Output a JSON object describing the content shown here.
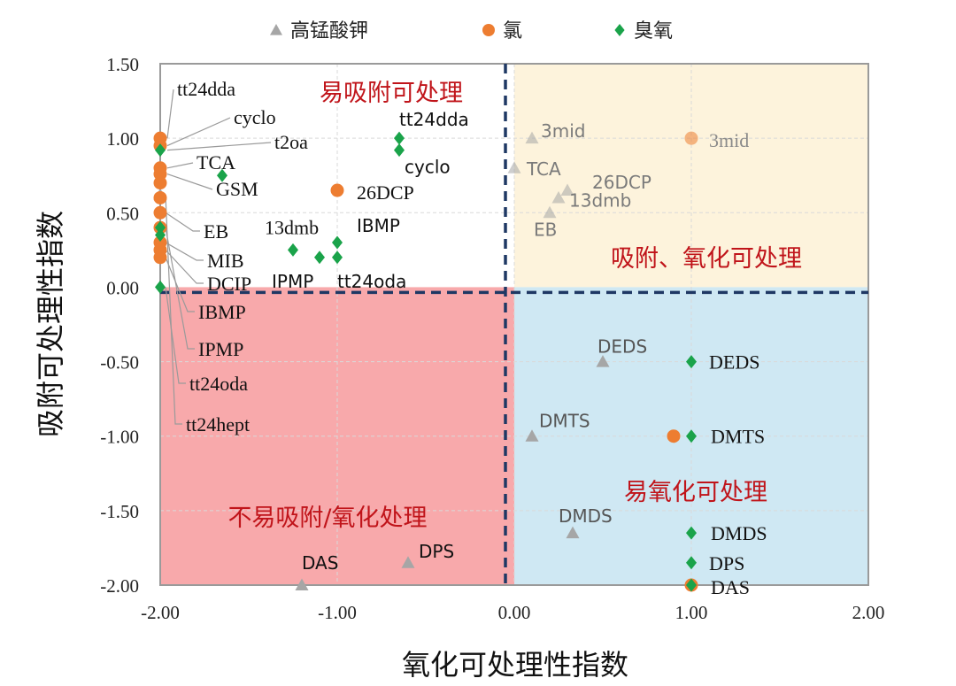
{
  "chart_data": {
    "type": "scatter",
    "title": "",
    "xlabel": "氧化可处理性指数",
    "ylabel": "吸附可处理性指数",
    "xlim": [
      -2.0,
      2.0
    ],
    "ylim": [
      -2.0,
      1.5
    ],
    "xticks": [
      "-2.00",
      "-1.00",
      "0.00",
      "1.00",
      "2.00"
    ],
    "yticks": [
      "1.50",
      "1.00",
      "0.50",
      "0.00",
      "-0.50",
      "-1.00",
      "-1.50",
      "-2.00"
    ],
    "legend_position": "top",
    "legend": [
      {
        "name": "高锰酸钾",
        "marker": "triangle",
        "color": "#a6a6a6"
      },
      {
        "name": "氯",
        "marker": "circle",
        "color": "#ed7d31"
      },
      {
        "name": "臭氧",
        "marker": "diamond",
        "color": "#1aa34a"
      }
    ],
    "regions": [
      {
        "label": "易吸附可处理",
        "fill": "#ffffff",
        "x": [
          -2,
          0
        ],
        "y": [
          0,
          1.5
        ]
      },
      {
        "label": "吸附、氧化可处理",
        "fill": "#fdf3dc",
        "x": [
          0,
          2
        ],
        "y": [
          0,
          1.5
        ]
      },
      {
        "label": "不易吸附/氧化处理",
        "fill": "#f8a9ab",
        "x": [
          -2,
          0
        ],
        "y": [
          -2,
          0
        ]
      },
      {
        "label": "易氧化可处理",
        "fill": "#cfe8f3",
        "x": [
          0,
          2
        ],
        "y": [
          -2,
          0
        ]
      }
    ],
    "edge_labels": [
      "tt24dda",
      "cyclo",
      "t2oa",
      "TCA",
      "GSM",
      "EB",
      "MIB",
      "DCIP",
      "IBMP",
      "IPMP",
      "tt24oda",
      "tt24hept"
    ],
    "series": [
      {
        "name": "高锰酸钾",
        "points": [
          {
            "x": 0.1,
            "y": 1.0,
            "label": "3mid"
          },
          {
            "x": 0.0,
            "y": 0.8,
            "label": "TCA"
          },
          {
            "x": 0.3,
            "y": 0.65,
            "label": "26DCP"
          },
          {
            "x": 0.25,
            "y": 0.6,
            "label": "13dmb"
          },
          {
            "x": 0.2,
            "y": 0.5,
            "label": "EB"
          },
          {
            "x": 0.5,
            "y": -0.5,
            "label": "DEDS"
          },
          {
            "x": 0.1,
            "y": -1.0,
            "label": "DMTS"
          },
          {
            "x": 0.33,
            "y": -1.65,
            "label": "DMDS"
          },
          {
            "x": -1.2,
            "y": -2.0,
            "label": "DAS"
          },
          {
            "x": -0.6,
            "y": -1.85,
            "label": "DPS"
          },
          {
            "x": -2.0,
            "y": 0.62,
            "label": ""
          }
        ]
      },
      {
        "name": "氯",
        "points": [
          {
            "x": -2.0,
            "y": 1.0,
            "label": ""
          },
          {
            "x": -2.0,
            "y": 0.95,
            "label": ""
          },
          {
            "x": -2.0,
            "y": 0.8,
            "label": ""
          },
          {
            "x": -2.0,
            "y": 0.76,
            "label": ""
          },
          {
            "x": -2.0,
            "y": 0.7,
            "label": ""
          },
          {
            "x": -2.0,
            "y": 0.6,
            "label": ""
          },
          {
            "x": -2.0,
            "y": 0.5,
            "label": ""
          },
          {
            "x": -2.0,
            "y": 0.4,
            "label": ""
          },
          {
            "x": -2.0,
            "y": 0.3,
            "label": ""
          },
          {
            "x": -2.0,
            "y": 0.25,
            "label": ""
          },
          {
            "x": -2.0,
            "y": 0.2,
            "label": ""
          },
          {
            "x": -1.0,
            "y": 0.65,
            "label": "26DCP"
          },
          {
            "x": 1.0,
            "y": 1.0,
            "label": "3mid"
          },
          {
            "x": 0.9,
            "y": -1.0,
            "label": ""
          },
          {
            "x": 1.0,
            "y": -2.0,
            "label": ""
          }
        ]
      },
      {
        "name": "臭氧",
        "points": [
          {
            "x": -2.0,
            "y": 0.92,
            "label": ""
          },
          {
            "x": -2.0,
            "y": 0.4,
            "label": ""
          },
          {
            "x": -2.0,
            "y": 0.35,
            "label": ""
          },
          {
            "x": -2.0,
            "y": 0.0,
            "label": ""
          },
          {
            "x": -1.65,
            "y": 0.75,
            "label": ""
          },
          {
            "x": -0.65,
            "y": 1.0,
            "label": "tt24dda"
          },
          {
            "x": -0.65,
            "y": 0.92,
            "label": "cyclo"
          },
          {
            "x": -1.0,
            "y": 0.3,
            "label": "IBMP"
          },
          {
            "x": -1.25,
            "y": 0.25,
            "label": "13dmb"
          },
          {
            "x": -1.1,
            "y": 0.2,
            "label": "IPMP"
          },
          {
            "x": -1.0,
            "y": 0.2,
            "label": "tt24oda"
          },
          {
            "x": 1.0,
            "y": -0.5,
            "label": "DEDS"
          },
          {
            "x": 1.0,
            "y": -1.0,
            "label": "DMTS"
          },
          {
            "x": 1.0,
            "y": -1.65,
            "label": "DMDS"
          },
          {
            "x": 1.0,
            "y": -1.85,
            "label": "DPS"
          },
          {
            "x": 1.0,
            "y": -2.0,
            "label": "DAS"
          }
        ]
      }
    ]
  }
}
